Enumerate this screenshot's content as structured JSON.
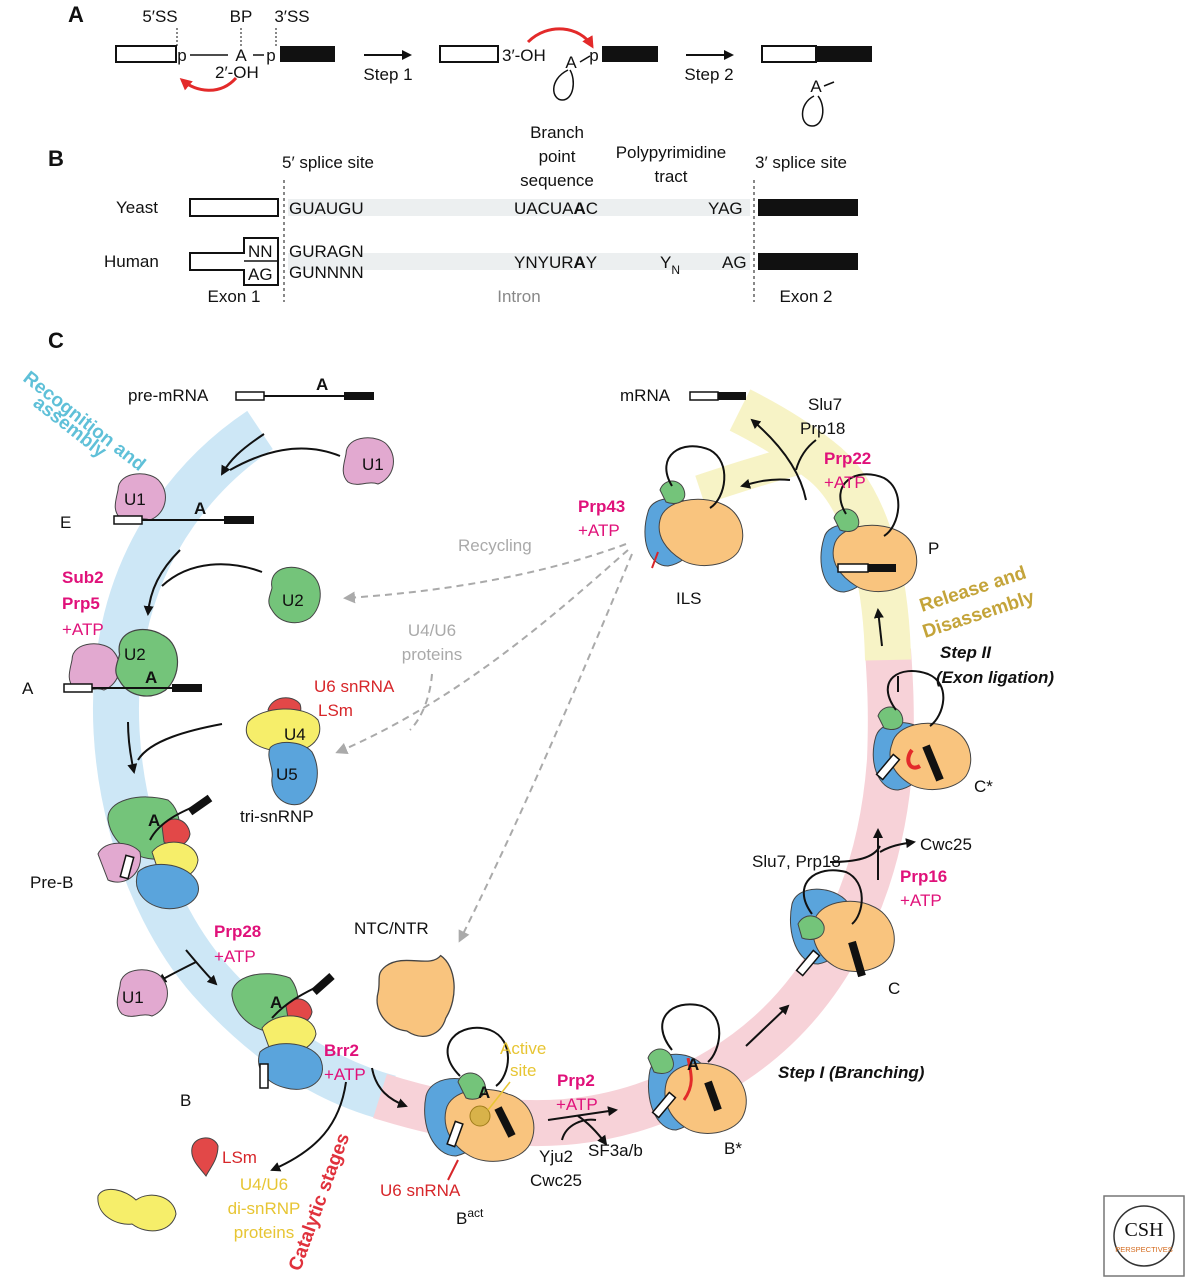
{
  "panels": {
    "a": "A",
    "b": "B",
    "c": "C"
  },
  "panel_a": {
    "site_5ss": "5′SS",
    "site_bp": "BP",
    "site_3ss": "3′SS",
    "p": "p",
    "a": "A",
    "oh2": "2′-OH",
    "oh3": "3′-OH",
    "step1": "Step 1",
    "step2": "Step 2"
  },
  "panel_b": {
    "h_5ss": "5′ splice site",
    "h_branch_1": "Branch",
    "h_branch_2": "point",
    "h_branch_3": "sequence",
    "h_poly_1": "Polypyrimidine",
    "h_poly_2": "tract",
    "h_3ss": "3′ splice site",
    "yeast": "Yeast",
    "human": "Human",
    "y_5": "GUAUGU",
    "y_bp_pre": "UACUA",
    "y_bp_a": "A",
    "y_bp_post": "C",
    "y_3": "YAG",
    "h_nn": "NN",
    "h_ag": "AG",
    "h_5a": "GURAGN",
    "h_5b": "GUNNNN",
    "h_bp_pre": "YNYUR",
    "h_bp_a": "A",
    "h_bp_post": "Y",
    "h_yn": "Y",
    "h_yn_sub": "N",
    "h_3": "AG",
    "exon1": "Exon 1",
    "intron": "Intron",
    "exon2": "Exon 2"
  },
  "panel_c": {
    "recog_1": "Recognition and",
    "recog_2": "assembly",
    "catalytic": "Catalytic stages",
    "release_1": "Release and",
    "release_2": "Disassembly",
    "pre_mrna": "pre-mRNA",
    "mrna": "mRNA",
    "a": "A",
    "u1": "U1",
    "u2": "U2",
    "u4": "U4",
    "u5": "U5",
    "e": "E",
    "a_complex": "A",
    "pre_b": "Pre-B",
    "b": "B",
    "bact": "B",
    "bact_sup": "act",
    "bstar": "B*",
    "c": "C",
    "cstar": "C*",
    "p": "P",
    "ils": "ILS",
    "sub2": "Sub2",
    "prp5": "Prp5",
    "atp": "+ATP",
    "prp28": "Prp28",
    "brr2": "Brr2",
    "prp2": "Prp2",
    "prp16": "Prp16",
    "prp22": "Prp22",
    "prp43": "Prp43",
    "u6_snrna": "U6 snRNA",
    "lsm": "LSm",
    "tri_snrnp": "tri-snRNP",
    "recycling": "Recycling",
    "u4u6_prot_1": "U4/U6",
    "u4u6_prot_2": "proteins",
    "ntc": "NTC/NTR",
    "active_1": "Active",
    "active_2": "site",
    "yju2": "Yju2",
    "cwc25": "Cwc25",
    "sf3": "SF3a/b",
    "slu7_prp18": "Slu7, Prp18",
    "cwc25_b": "Cwc25",
    "slu7": "Slu7",
    "prp18": "Prp18",
    "step_i": "Step I (Branching)",
    "step_ii_1": "Step II",
    "step_ii_2": "(Exon ligation)",
    "di_1": "U4/U6",
    "di_2": "di-snRNP",
    "di_3": "proteins",
    "logo_1": "CSH",
    "logo_2": "PERSPECTIVES"
  },
  "colors": {
    "u1": "#e2a9d0",
    "u2": "#74c47a",
    "u4": "#f6ee6a",
    "u5": "#5aa4dc",
    "u6": "#e24848",
    "ntc": "#f9c47e",
    "track_blue": "#cde7f6",
    "track_pink": "#f7d2d8",
    "track_yellow": "#f7f3c6",
    "magenta": "#e0117a",
    "arrow_red": "#e32a2a"
  }
}
